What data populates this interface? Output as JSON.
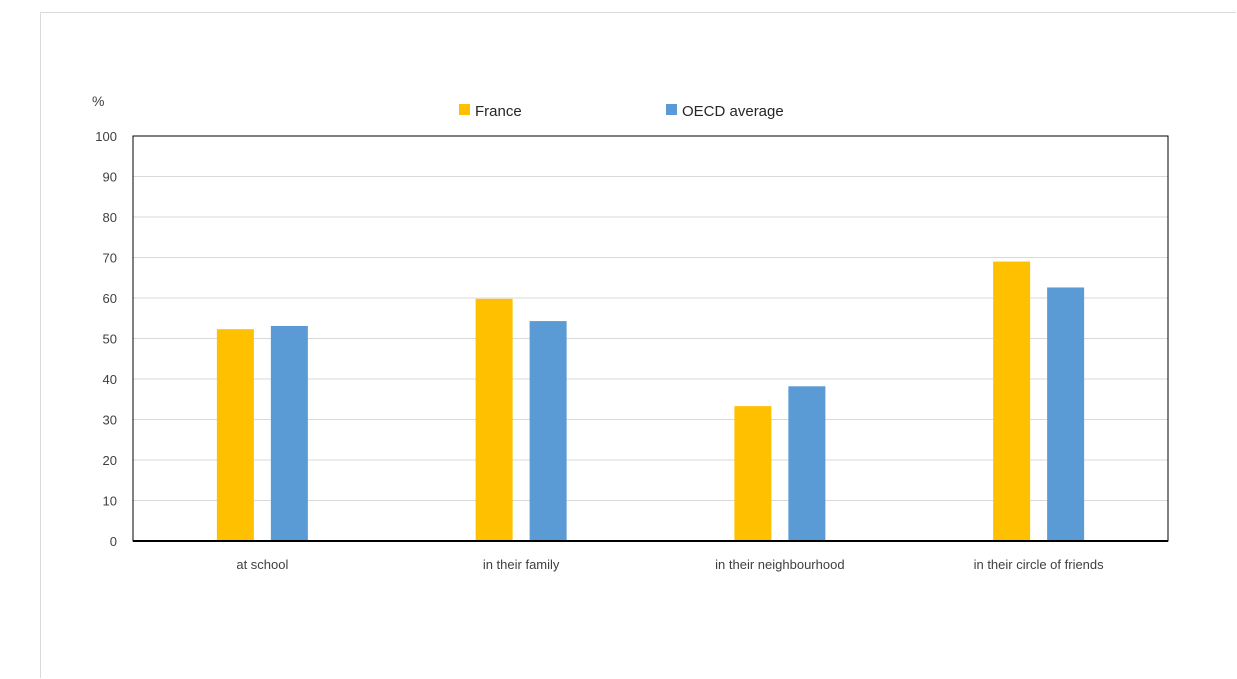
{
  "chart_data": {
    "type": "bar",
    "y_unit": "%",
    "ylim": [
      0,
      100
    ],
    "y_ticks": [
      0,
      10,
      20,
      30,
      40,
      50,
      60,
      70,
      80,
      90,
      100
    ],
    "grid": true,
    "legend_placement": "top-center",
    "categories": [
      "at school",
      "in their family",
      "in their neighbourhood",
      "in their circle of friends"
    ],
    "series": [
      {
        "name": "France",
        "color": "#ffc000",
        "values": [
          52.3,
          59.8,
          33.3,
          69.0
        ]
      },
      {
        "name": "OECD average",
        "color": "#5b9bd5",
        "values": [
          53.1,
          54.3,
          38.2,
          62.6
        ]
      }
    ]
  }
}
